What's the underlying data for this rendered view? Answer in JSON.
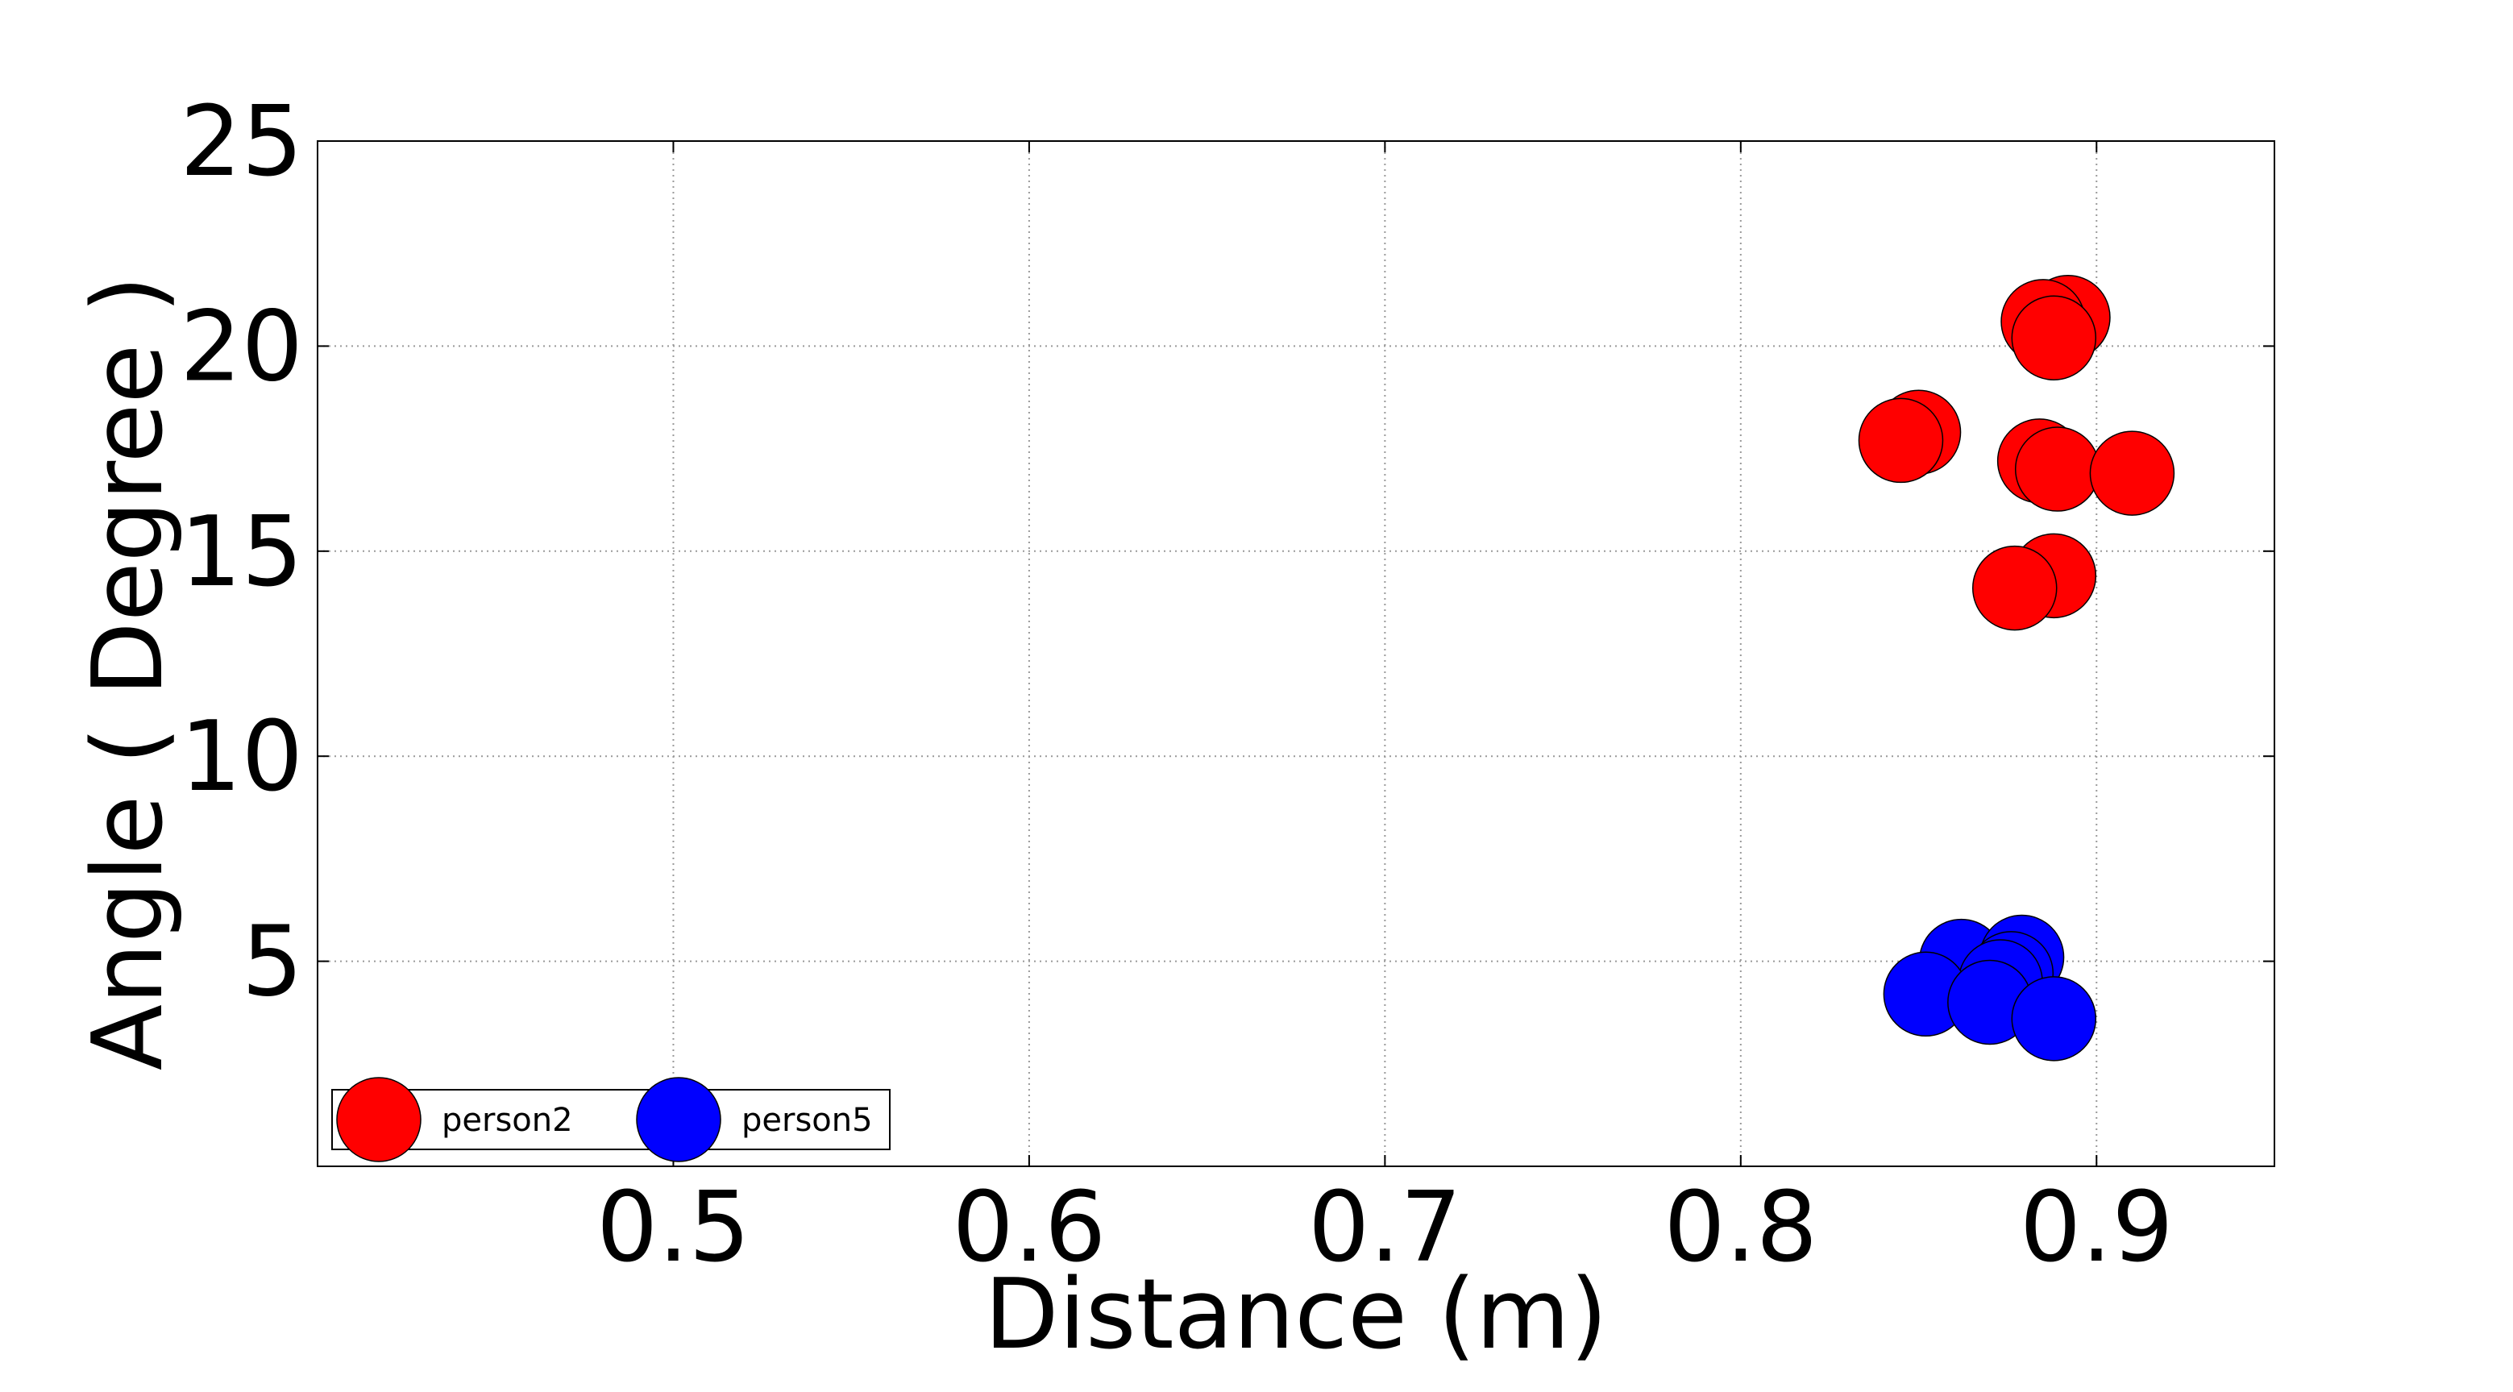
{
  "chart_data": {
    "type": "scatter",
    "title": "",
    "xlabel": "Distance (m)",
    "ylabel": "Angle ( Degree )",
    "xlim": [
      0.4,
      0.95
    ],
    "ylim": [
      0,
      25
    ],
    "x_ticks": [
      {
        "value": 0.5,
        "label": "0.5"
      },
      {
        "value": 0.6,
        "label": "0.6"
      },
      {
        "value": 0.7,
        "label": "0.7"
      },
      {
        "value": 0.8,
        "label": "0.8"
      },
      {
        "value": 0.9,
        "label": "0.9"
      }
    ],
    "y_ticks": [
      {
        "value": 5,
        "label": "5"
      },
      {
        "value": 10,
        "label": "10"
      },
      {
        "value": 15,
        "label": "15"
      },
      {
        "value": 20,
        "label": "20"
      },
      {
        "value": 25,
        "label": "25"
      }
    ],
    "grid": true,
    "legend_position": "lower-left",
    "series": [
      {
        "name": "person2",
        "color": "#ff0000",
        "points": [
          {
            "x": 0.892,
            "y": 20.7
          },
          {
            "x": 0.885,
            "y": 20.6
          },
          {
            "x": 0.888,
            "y": 20.2
          },
          {
            "x": 0.85,
            "y": 17.9
          },
          {
            "x": 0.845,
            "y": 17.7
          },
          {
            "x": 0.884,
            "y": 17.2
          },
          {
            "x": 0.889,
            "y": 17.0
          },
          {
            "x": 0.91,
            "y": 16.9
          },
          {
            "x": 0.888,
            "y": 14.4
          },
          {
            "x": 0.877,
            "y": 14.1
          }
        ]
      },
      {
        "name": "person5",
        "color": "#0000ff",
        "points": [
          {
            "x": 0.862,
            "y": 5.0
          },
          {
            "x": 0.879,
            "y": 5.1
          },
          {
            "x": 0.876,
            "y": 4.7
          },
          {
            "x": 0.873,
            "y": 4.5
          },
          {
            "x": 0.852,
            "y": 4.2
          },
          {
            "x": 0.87,
            "y": 4.0
          },
          {
            "x": 0.888,
            "y": 3.6
          }
        ]
      }
    ]
  }
}
